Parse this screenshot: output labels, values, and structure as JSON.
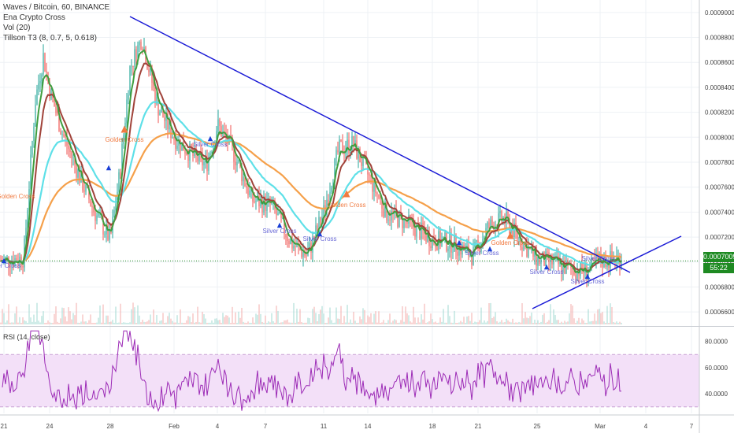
{
  "header": {
    "symbol_line": "Waves / Bitcoin, 60, BINANCE",
    "indicators": [
      "Ena Crypto Cross",
      "Vol (20)",
      "Tillson T3 (8, 0.7, 5, 0.618)"
    ]
  },
  "price_axis": {
    "ticks": [
      "0.00090000",
      "0.00088000",
      "0.00086000",
      "0.00084000",
      "0.00082000",
      "0.00080000",
      "0.00078000",
      "0.00076000",
      "0.00074000",
      "0.00072000",
      "0.00070000",
      "0.00068000",
      "0.00066000"
    ],
    "current_price": "0.0007009",
    "countdown": "55:22"
  },
  "rsi_panel": {
    "label": "RSI (14, close)",
    "ticks": [
      "80.0000",
      "60.0000",
      "40.0000"
    ]
  },
  "time_axis": {
    "ticks": [
      "21",
      "24",
      "28",
      "Feb",
      "4",
      "7",
      "11",
      "14",
      "18",
      "21",
      "25",
      "Mar",
      "4",
      "7"
    ]
  },
  "colors": {
    "up_candle": "#26a69a",
    "down_candle": "#ef5350",
    "trendline": "#1a1ad6",
    "ema_cyan": "#5ee0e8",
    "ema_orange": "#f5a04a",
    "t3_green": "#3f9e3f",
    "t3_brown": "#a0433a",
    "rsi_line": "#9c2bb6",
    "rsi_band": "#f3e0f8",
    "current_price_bg": "#1e8a22",
    "countdown_bg": "#1e8a22",
    "signal_up": "#1a3fd6",
    "signal_cross": "#f07a40"
  },
  "annotations": [
    {
      "text": "Golden Cross",
      "color": "#f07a40"
    },
    {
      "text": "Golden Cross",
      "color": "#f07a40"
    },
    {
      "text": "Silver Cross",
      "color": "#6a6ad6"
    },
    {
      "text": "Silver Cross",
      "color": "#6a6ad6"
    },
    {
      "text": "Silver Cross",
      "color": "#6a6ad6"
    },
    {
      "text": "Golden Cross",
      "color": "#f07a40"
    },
    {
      "text": "Silver Cross",
      "color": "#6a6ad6"
    },
    {
      "text": "Silver Cross",
      "color": "#6a6ad6"
    },
    {
      "text": "Golden Cross",
      "color": "#f07a40"
    },
    {
      "text": "Silver Cross",
      "color": "#6a6ad6"
    },
    {
      "text": "Silver Cross",
      "color": "#6a6ad6"
    },
    {
      "text": "Silver Cross",
      "color": "#6a6ad6"
    }
  ],
  "chart_data": {
    "type": "line",
    "title": "Waves / Bitcoin, 60, BINANCE",
    "x_ticks": [
      "21",
      "24",
      "28",
      "Feb",
      "4",
      "7",
      "11",
      "14",
      "18",
      "21",
      "25",
      "Mar",
      "4",
      "7"
    ],
    "y_range": [
      0.00065,
      0.00091
    ],
    "series": [
      {
        "name": "price",
        "x": [
          "21",
          "24",
          "28",
          "Feb",
          "4",
          "7",
          "11",
          "14",
          "18",
          "21",
          "25",
          "Mar"
        ],
        "values": [
          0.000701,
          0.000865,
          0.000718,
          0.000885,
          0.000795,
          0.000745,
          0.000705,
          0.000785,
          0.000738,
          0.000712,
          0.000699,
          0.000701
        ]
      },
      {
        "name": "Ena Crypto Cross (cyan)",
        "x": [
          "21",
          "24",
          "28",
          "Feb",
          "4",
          "7",
          "11",
          "14",
          "18",
          "21",
          "25",
          "Mar"
        ],
        "values": [
          0.000703,
          0.00077,
          0.000775,
          0.00081,
          0.00079,
          0.00076,
          0.00073,
          0.000755,
          0.000735,
          0.000718,
          0.000705,
          0.0007
        ]
      },
      {
        "name": "Ena Crypto Cross (orange)",
        "x": [
          "21",
          "24",
          "28",
          "Feb",
          "4",
          "7",
          "11",
          "14",
          "18",
          "21",
          "25",
          "Mar"
        ],
        "values": [
          0.000714,
          0.000735,
          0.000755,
          0.000795,
          0.00081,
          0.000785,
          0.00076,
          0.000748,
          0.00074,
          0.00073,
          0.000712,
          0.0007
        ]
      }
    ],
    "trendlines": [
      {
        "from": [
          "28",
          0.00089
        ],
        "to": [
          "Mar",
          0.000695
        ]
      },
      {
        "from": [
          "25",
          0.00066
        ],
        "to": [
          "7",
          0.000718
        ]
      }
    ],
    "rsi": {
      "label": "RSI (14, close)",
      "range": [
        25,
        90
      ],
      "band": [
        30,
        70
      ]
    }
  }
}
